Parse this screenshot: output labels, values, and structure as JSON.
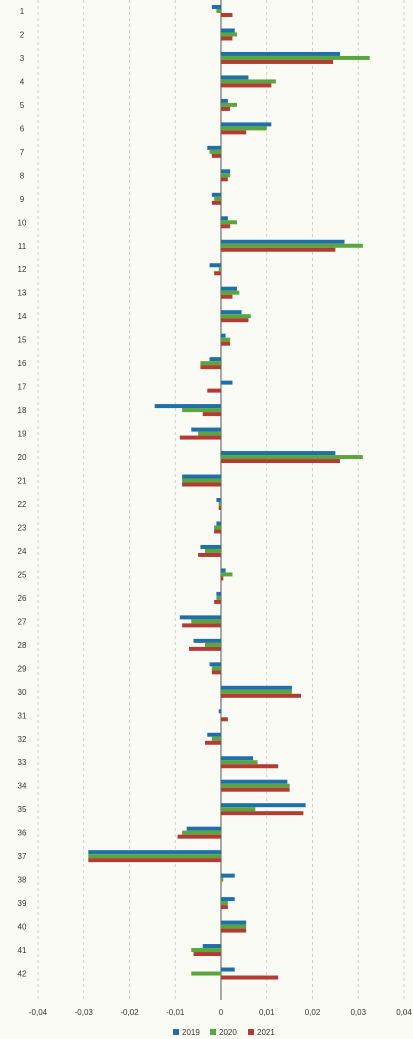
{
  "chart_data": {
    "type": "bar",
    "orientation": "horizontal",
    "categories": [
      "1",
      "2",
      "3",
      "4",
      "5",
      "6",
      "7",
      "8",
      "9",
      "10",
      "11",
      "12",
      "13",
      "14",
      "15",
      "16",
      "17",
      "18",
      "19",
      "20",
      "21",
      "22",
      "23",
      "24",
      "25",
      "26",
      "27",
      "28",
      "29",
      "30",
      "31",
      "32",
      "33",
      "34",
      "35",
      "36",
      "37",
      "38",
      "39",
      "40",
      "41",
      "42"
    ],
    "series": [
      {
        "name": "2019",
        "color": "#1f6fa8",
        "values": [
          -0.002,
          0.003,
          0.026,
          0.006,
          0.0015,
          0.011,
          -0.003,
          0.002,
          -0.002,
          0.0015,
          0.027,
          -0.0025,
          0.0035,
          0.0045,
          0.001,
          -0.0025,
          0.0025,
          -0.0145,
          -0.0065,
          0.025,
          -0.0085,
          -0.001,
          -0.001,
          -0.0045,
          0.001,
          -0.001,
          -0.009,
          -0.006,
          -0.0025,
          0.0155,
          -0.0005,
          -0.003,
          0.007,
          0.0145,
          0.0185,
          -0.0075,
          -0.029,
          0.003,
          0.003,
          0.0055,
          -0.004,
          0.003
        ]
      },
      {
        "name": "2020",
        "color": "#5aa63c",
        "values": [
          -0.001,
          0.0035,
          0.0325,
          0.012,
          0.0035,
          0.01,
          -0.0025,
          0.002,
          -0.0015,
          0.0035,
          0.031,
          -0.0005,
          0.004,
          0.0065,
          0.002,
          -0.0045,
          0,
          -0.0085,
          -0.005,
          0.031,
          -0.0085,
          -0.0005,
          -0.0015,
          -0.0035,
          0.0025,
          -0.001,
          -0.0065,
          -0.0035,
          -0.002,
          0.0155,
          0,
          -0.002,
          0.008,
          0.015,
          0.0075,
          -0.0085,
          -0.029,
          0.0005,
          0.0015,
          0.0055,
          -0.0065,
          -0.0065
        ]
      },
      {
        "name": "2021",
        "color": "#b33b35",
        "values": [
          0.0025,
          0.0025,
          0.0245,
          0.011,
          0.002,
          0.0055,
          -0.002,
          0.0015,
          -0.002,
          0.002,
          0.025,
          -0.0015,
          0.0025,
          0.006,
          0.002,
          -0.0045,
          -0.003,
          -0.004,
          -0.009,
          0.026,
          -0.0085,
          -0.0005,
          -0.0015,
          -0.005,
          0.0005,
          -0.0015,
          -0.0085,
          -0.007,
          -0.002,
          0.0175,
          0.0015,
          -0.0035,
          0.0125,
          0.015,
          0.018,
          -0.0095,
          -0.029,
          0,
          0.0015,
          0.0055,
          -0.006,
          0.0125
        ]
      }
    ],
    "xticks": [
      "-0,04",
      "-0,03",
      "-0,02",
      "-0,01",
      "0",
      "0,01",
      "0,02",
      "0,03",
      "0,04"
    ],
    "xlim": [
      -0.04,
      0.04
    ],
    "grid": "vertical dashed",
    "legend": "bottom"
  }
}
